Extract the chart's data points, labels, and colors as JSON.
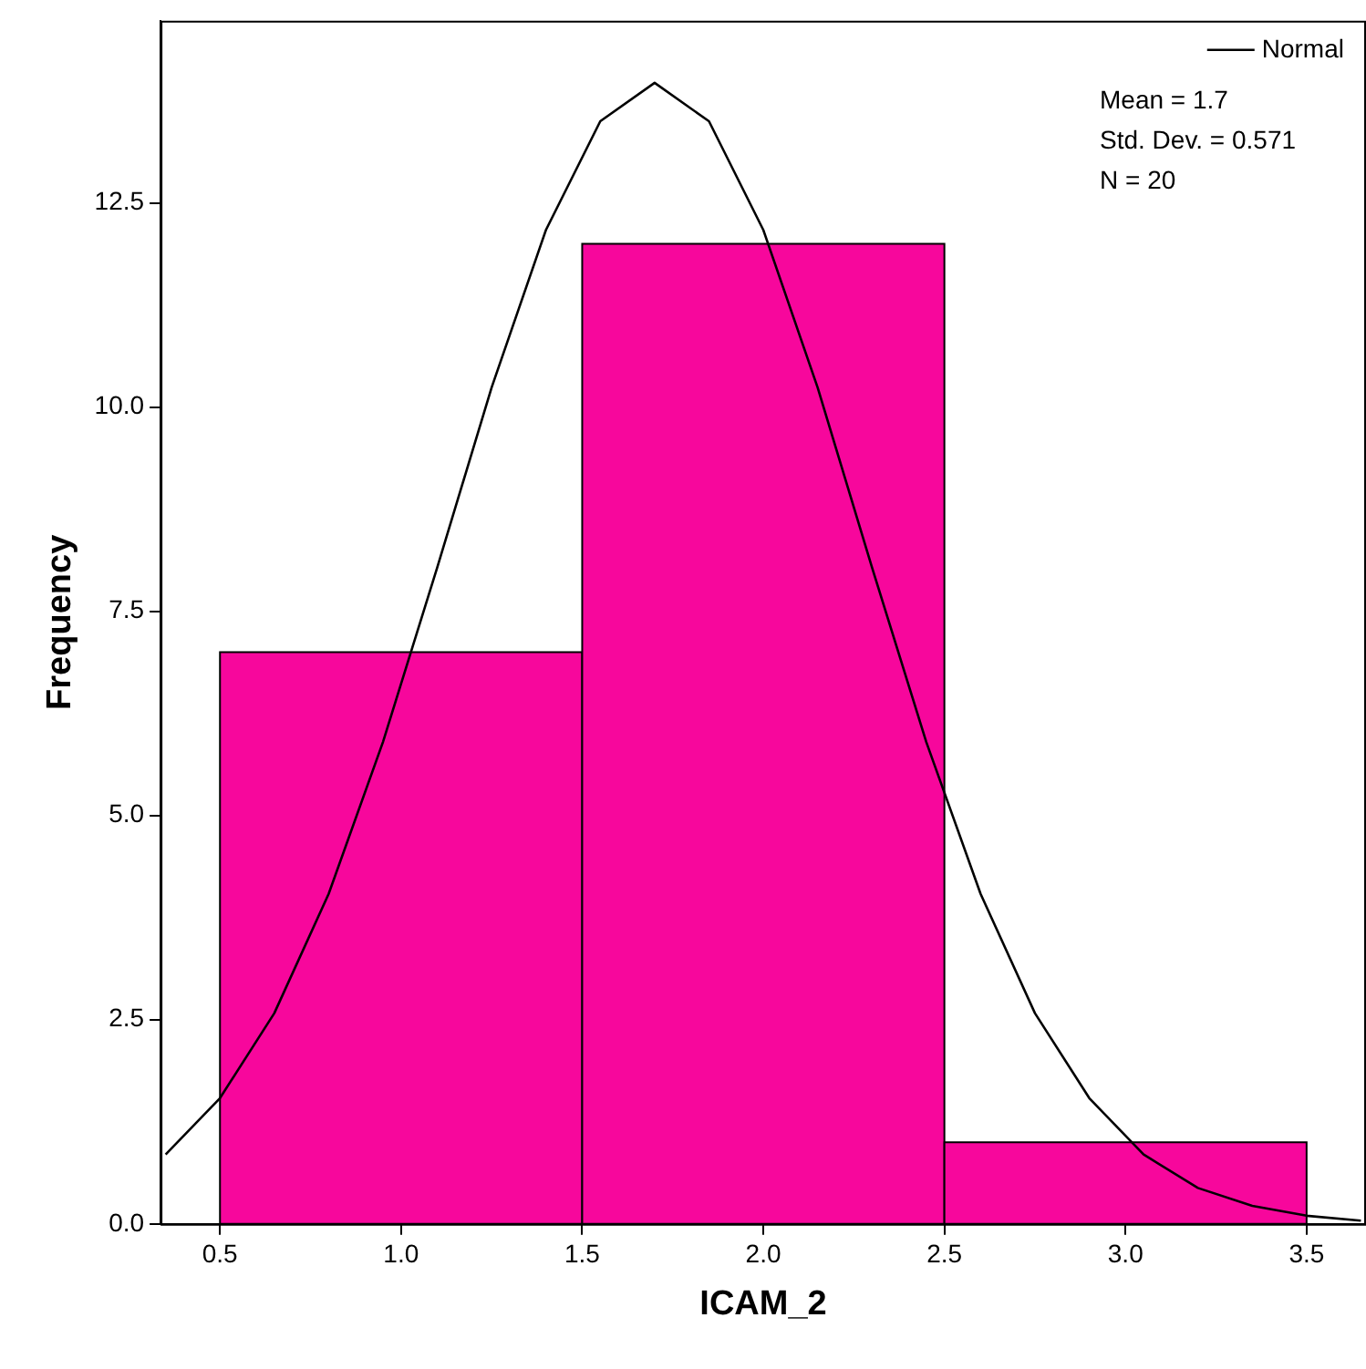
{
  "chart_data": {
    "type": "histogram",
    "xlabel": "ICAM_2",
    "ylabel": "Frequency",
    "bins": [
      0.5,
      1.5,
      2.5,
      3.5
    ],
    "values": [
      7,
      12,
      1
    ],
    "color": "#f7079c",
    "series": [
      {
        "type": "line",
        "name": "Normal",
        "color": "#000000",
        "marker": "none",
        "x": [
          0.35,
          0.5,
          0.65,
          0.8,
          0.95,
          1.1,
          1.25,
          1.4,
          1.55,
          1.7,
          1.85,
          2.0,
          2.15,
          2.3,
          2.45,
          2.6,
          2.75,
          2.9,
          3.05,
          3.2,
          3.35,
          3.5,
          3.65
        ],
        "values": [
          0.85,
          1.54,
          2.58,
          4.04,
          5.9,
          8.04,
          10.24,
          12.17,
          13.5,
          13.97,
          13.5,
          12.17,
          10.24,
          8.04,
          5.9,
          4.04,
          2.58,
          1.54,
          0.85,
          0.44,
          0.22,
          0.1,
          0.04
        ]
      }
    ],
    "xlim": [
      0.336,
      3.664
    ],
    "xticks": [
      0.5,
      {
        "value": 1,
        "label": "1.0"
      },
      1.5,
      {
        "value": 2,
        "label": "2.0"
      },
      2.5,
      {
        "value": 3,
        "label": "3.0"
      },
      3.5
    ],
    "ylim": [
      0,
      14.73
    ],
    "yticks": [
      {
        "value": 0,
        "label": "0.0"
      },
      2.5,
      {
        "value": 5,
        "label": "5.0"
      },
      7.5,
      {
        "value": 10,
        "label": "10.0"
      },
      12.5
    ],
    "grid": false,
    "legend": "top right",
    "annotations": [
      "Mean = 1.7",
      "Std. Dev. = 0.571",
      "N = 20"
    ]
  }
}
